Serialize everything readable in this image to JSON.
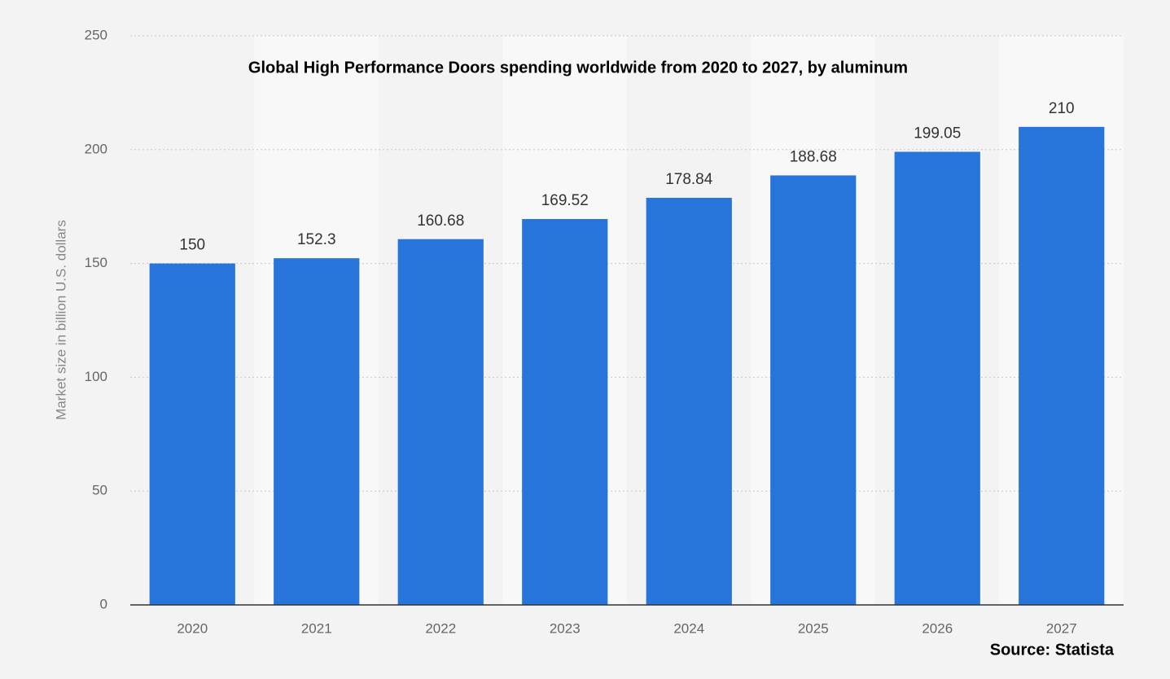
{
  "chart_data": {
    "type": "bar",
    "title": "Global High Performance Doors spending worldwide from 2020 to 2027, by aluminum",
    "y_label": "Market size in billion U.S. dollars",
    "source": "Source: Statista",
    "categories": [
      "2020",
      "2021",
      "2022",
      "2023",
      "2024",
      "2025",
      "2026",
      "2027"
    ],
    "values": [
      150,
      152.3,
      160.68,
      169.52,
      178.84,
      188.68,
      199.05,
      210
    ],
    "color": "#2775db",
    "ylim": [
      0,
      250
    ],
    "yticks": [
      0,
      50,
      100,
      150,
      200,
      250
    ],
    "grid": true
  }
}
